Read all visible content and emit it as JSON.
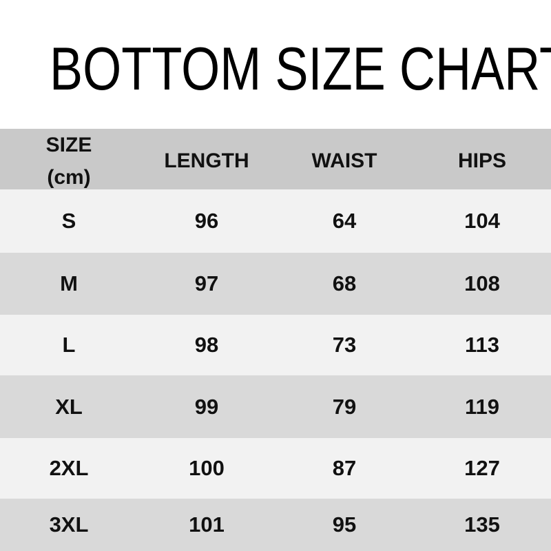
{
  "title": "BOTTOM SIZE CHART",
  "chart_data": {
    "type": "table",
    "title": "BOTTOM SIZE CHART",
    "unit": "cm",
    "header": {
      "size_label": "SIZE",
      "size_unit": "(cm)",
      "length": "LENGTH",
      "waist": "WAIST",
      "hips": "HIPS"
    },
    "columns": [
      "SIZE (cm)",
      "LENGTH",
      "WAIST",
      "HIPS"
    ],
    "rows": [
      {
        "size": "S",
        "length": "96",
        "waist": "64",
        "hips": "104"
      },
      {
        "size": "M",
        "length": "97",
        "waist": "68",
        "hips": "108"
      },
      {
        "size": "L",
        "length": "98",
        "waist": "73",
        "hips": "113"
      },
      {
        "size": "XL",
        "length": "99",
        "waist": "79",
        "hips": "119"
      },
      {
        "size": "2XL",
        "length": "100",
        "waist": "87",
        "hips": "127"
      },
      {
        "size": "3XL",
        "length": "101",
        "waist": "95",
        "hips": "135"
      }
    ]
  },
  "colors": {
    "page_bg": "#ffffff",
    "header_bg": "#c9c9c9",
    "row_light": "#f2f2f2",
    "row_dark": "#d9d9d9",
    "text": "#111111"
  }
}
